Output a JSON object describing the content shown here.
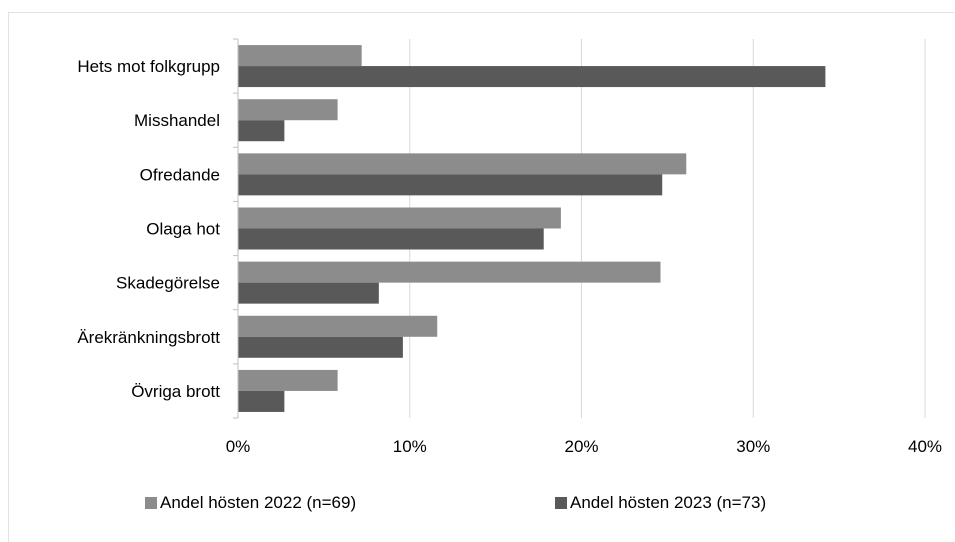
{
  "chart_data": {
    "type": "bar",
    "orientation": "horizontal",
    "categories": [
      "Hets mot folkgrupp",
      "Misshandel",
      "Ofredande",
      "Olaga hot",
      "Skadegörelse",
      "Ärekränkningsbrott",
      "Övriga brott"
    ],
    "series": [
      {
        "name": "Andel hösten 2022 (n=69)",
        "values": [
          7.2,
          5.8,
          26.1,
          18.8,
          24.6,
          11.6,
          5.8
        ],
        "color": "#8c8c8c"
      },
      {
        "name": "Andel hösten 2023 (n=73)",
        "values": [
          34.2,
          2.7,
          24.7,
          17.8,
          8.2,
          9.6,
          2.7
        ],
        "color": "#595959"
      }
    ],
    "xlim": [
      0,
      40
    ],
    "xticks": [
      0,
      10,
      20,
      30,
      40
    ],
    "xtick_labels": [
      "0%",
      "10%",
      "20%",
      "30%",
      "40%"
    ],
    "grid": true,
    "legend": "bottom"
  }
}
